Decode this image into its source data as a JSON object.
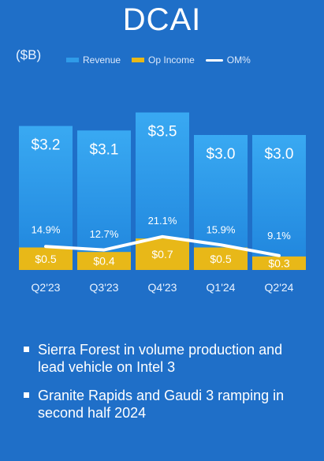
{
  "title": "DCAI",
  "unit_label": "($B)",
  "colors": {
    "background": "#1f6fc8",
    "revenue": "#2f9be8",
    "op_income": "#e8b818",
    "om_line": "#ffffff"
  },
  "bullets": [
    "Sierra Forest in volume production and lead vehicle on Intel 3",
    "Granite Rapids and Gaudi 3 ramping in second half 2024"
  ],
  "chart_data": {
    "type": "bar",
    "title": "DCAI",
    "ylabel": "($B)",
    "categories": [
      "Q2'23",
      "Q3'23",
      "Q4'23",
      "Q1'24",
      "Q2'24"
    ],
    "series": [
      {
        "name": "Revenue",
        "type": "bar",
        "values": [
          3.2,
          3.1,
          3.5,
          3.0,
          3.0
        ],
        "labels": [
          "$3.2",
          "$3.1",
          "$3.5",
          "$3.0",
          "$3.0"
        ]
      },
      {
        "name": "Op Income",
        "type": "bar",
        "values": [
          0.5,
          0.4,
          0.7,
          0.5,
          0.3
        ],
        "labels": [
          "$0.5",
          "$0.4",
          "$0.7",
          "$0.5",
          "$0.3"
        ]
      },
      {
        "name": "OM%",
        "type": "line",
        "values": [
          14.9,
          12.7,
          21.1,
          15.9,
          9.1
        ],
        "labels": [
          "14.9%",
          "12.7%",
          "21.1%",
          "15.9%",
          "9.1%"
        ]
      }
    ],
    "legend_position": "top",
    "grid": false
  }
}
